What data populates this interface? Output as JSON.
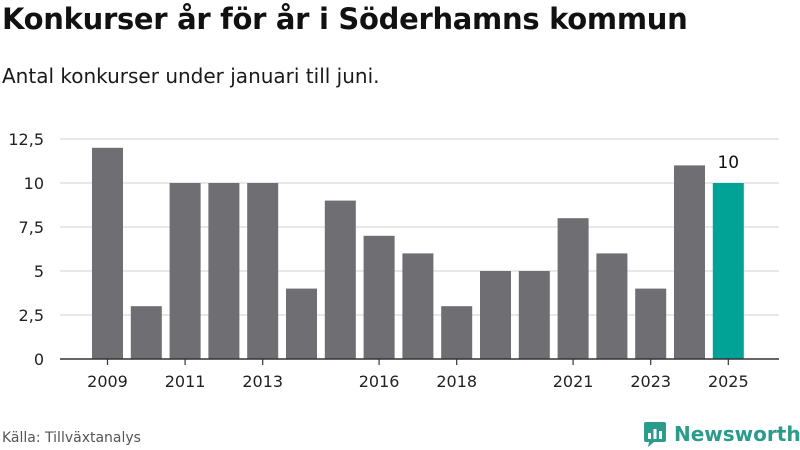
{
  "title": "Konkurser år för år i Söderhamns kommun",
  "subtitle": "Antal konkurser under januari till juni.",
  "source": "Källa: Tillväxtanalys",
  "brand": "Newsworthy",
  "colors": {
    "bar": "#6e6e73",
    "highlight": "#00a396",
    "grid": "#d9d9d9",
    "axis": "#333333",
    "brand": "#2b9b8c"
  },
  "chart_data": {
    "type": "bar",
    "categories": [
      "2009",
      "2010",
      "2011",
      "2012",
      "2013",
      "2014",
      "2015",
      "2016",
      "2017",
      "2018",
      "2019",
      "2020",
      "2021",
      "2022",
      "2023",
      "2024",
      "2025"
    ],
    "values": [
      12,
      3,
      10,
      10,
      10,
      4,
      9,
      7,
      6,
      3,
      5,
      5,
      8,
      6,
      4,
      11,
      10
    ],
    "x_tick_labels": [
      "2009",
      "2011",
      "2013",
      "2016",
      "2018",
      "2021",
      "2023",
      "2025"
    ],
    "y_ticks": [
      0,
      2.5,
      5,
      7.5,
      10,
      12.5
    ],
    "y_tick_labels": [
      "0",
      "2,5",
      "5",
      "7,5",
      "10",
      "12,5"
    ],
    "ylim": [
      0,
      12.5
    ],
    "grid": true,
    "highlight_category": "2025",
    "data_labels": [
      {
        "category": "2025",
        "text": "10"
      }
    ]
  }
}
